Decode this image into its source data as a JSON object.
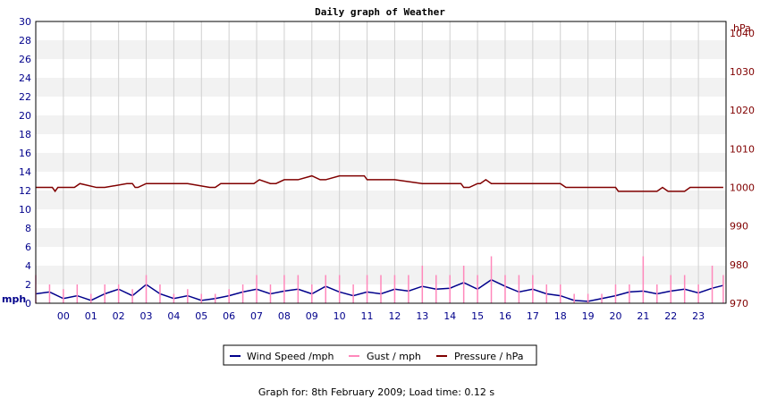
{
  "chart_data": {
    "type": "line",
    "title": "Daily graph of Weather",
    "footer": "Graph for: 8th February 2009; Load time: 0.12 s",
    "x": {
      "categories": [
        "00",
        "01",
        "02",
        "03",
        "04",
        "05",
        "06",
        "07",
        "08",
        "09",
        "10",
        "11",
        "12",
        "13",
        "14",
        "15",
        "16",
        "17",
        "18",
        "19",
        "20",
        "21",
        "22",
        "23"
      ],
      "range_hours": [
        -1,
        24
      ]
    },
    "y_left": {
      "unit": "mph",
      "ticks": [
        "0",
        "2",
        "4",
        "6",
        "8",
        "10",
        "12",
        "14",
        "16",
        "18",
        "20",
        "22",
        "24",
        "26",
        "28",
        "30"
      ],
      "range": [
        0,
        30
      ],
      "color": "#00008b"
    },
    "y_right": {
      "unit": "hPa",
      "ticks": [
        "970",
        "980",
        "990",
        "1000",
        "1010",
        "1020",
        "1030",
        "1040"
      ],
      "range": [
        970,
        1043
      ],
      "color": "#800000"
    },
    "grid": true,
    "legend_position": "bottom",
    "series": [
      {
        "name": "Wind Speed /mph",
        "axis": "left",
        "color": "#00008b",
        "x": [
          -1,
          -0.5,
          0,
          0.5,
          1,
          1.5,
          2,
          2.5,
          3,
          3.5,
          4,
          4.5,
          5,
          5.5,
          6,
          6.5,
          7,
          7.5,
          8,
          8.5,
          9,
          9.5,
          10,
          10.5,
          11,
          11.5,
          12,
          12.5,
          13,
          13.5,
          14,
          14.5,
          15,
          15.5,
          16,
          16.5,
          17,
          17.5,
          18,
          18.5,
          19,
          19.5,
          20,
          20.5,
          21,
          21.5,
          22,
          22.5,
          23,
          23.5,
          23.9
        ],
        "values": [
          1,
          1.2,
          0.5,
          0.8,
          0.3,
          1,
          1.5,
          0.8,
          2,
          1,
          0.5,
          0.8,
          0.3,
          0.5,
          0.8,
          1.2,
          1.5,
          1,
          1.3,
          1.5,
          1,
          1.8,
          1.2,
          0.8,
          1.2,
          1,
          1.5,
          1.3,
          1.8,
          1.5,
          1.6,
          2.2,
          1.5,
          2.5,
          1.8,
          1.2,
          1.5,
          1,
          0.8,
          0.3,
          0.2,
          0.5,
          0.8,
          1.2,
          1.3,
          1,
          1.3,
          1.5,
          1.1,
          1.6,
          1.9
        ]
      },
      {
        "name": "Gust / mph",
        "axis": "left",
        "color": "#ff88bb",
        "x": [
          -1,
          -0.5,
          0,
          0.5,
          1,
          1.5,
          2,
          2.5,
          3,
          3.5,
          4,
          4.5,
          5,
          5.5,
          6,
          6.5,
          7,
          7.5,
          8,
          8.5,
          9,
          9.5,
          10,
          10.5,
          11,
          11.5,
          12,
          12.5,
          13,
          13.5,
          14,
          14.5,
          15,
          15.5,
          16,
          16.5,
          17,
          17.5,
          18,
          18.5,
          19,
          19.5,
          20,
          20.5,
          21,
          21.5,
          22,
          22.5,
          23,
          23.5,
          23.9
        ],
        "values": [
          3,
          2,
          1.5,
          2,
          1,
          2,
          2,
          1.5,
          3,
          2,
          1,
          1.5,
          1,
          1,
          1.5,
          2,
          3,
          2,
          3,
          3,
          2,
          3,
          3,
          2,
          3,
          3,
          3,
          3,
          4,
          3,
          3,
          4,
          3,
          5,
          3,
          3,
          3,
          2,
          2,
          1,
          1,
          1,
          2,
          2,
          5,
          2,
          3,
          3,
          2,
          4,
          3
        ]
      },
      {
        "name": "Pressure / hPa",
        "axis": "right",
        "color": "#800000",
        "x": [
          -1,
          -0.4,
          -0.3,
          -0.2,
          0.1,
          0.4,
          0.6,
          1.2,
          1.5,
          2.3,
          2.5,
          2.6,
          2.7,
          3,
          4,
          4.5,
          5.3,
          5.5,
          5.7,
          6,
          6.9,
          7.1,
          7.5,
          7.7,
          8,
          8.5,
          9,
          9.3,
          9.5,
          10,
          10.5,
          10.8,
          10.9,
          11,
          12,
          13,
          14,
          14.4,
          14.5,
          14.7,
          15,
          15.1,
          15.3,
          15.5,
          16,
          17,
          18,
          18.2,
          18.4,
          19,
          20,
          20.1,
          20.4,
          21,
          21.5,
          21.7,
          21.9,
          22,
          22.5,
          22.7,
          23,
          23.9
        ],
        "values": [
          1000,
          1000,
          999,
          1000,
          1000,
          1000,
          1001,
          1000,
          1000,
          1001,
          1001,
          1000,
          1000,
          1001,
          1001,
          1001,
          1000,
          1000,
          1001,
          1001,
          1001,
          1002,
          1001,
          1001,
          1002,
          1002,
          1003,
          1002,
          1002,
          1003,
          1003,
          1003,
          1003,
          1002,
          1002,
          1001,
          1001,
          1001,
          1000,
          1000,
          1001,
          1001,
          1002,
          1001,
          1001,
          1001,
          1001,
          1000,
          1000,
          1000,
          1000,
          999,
          999,
          999,
          999,
          1000,
          999,
          999,
          999,
          1000,
          1000,
          1000
        ]
      }
    ]
  }
}
